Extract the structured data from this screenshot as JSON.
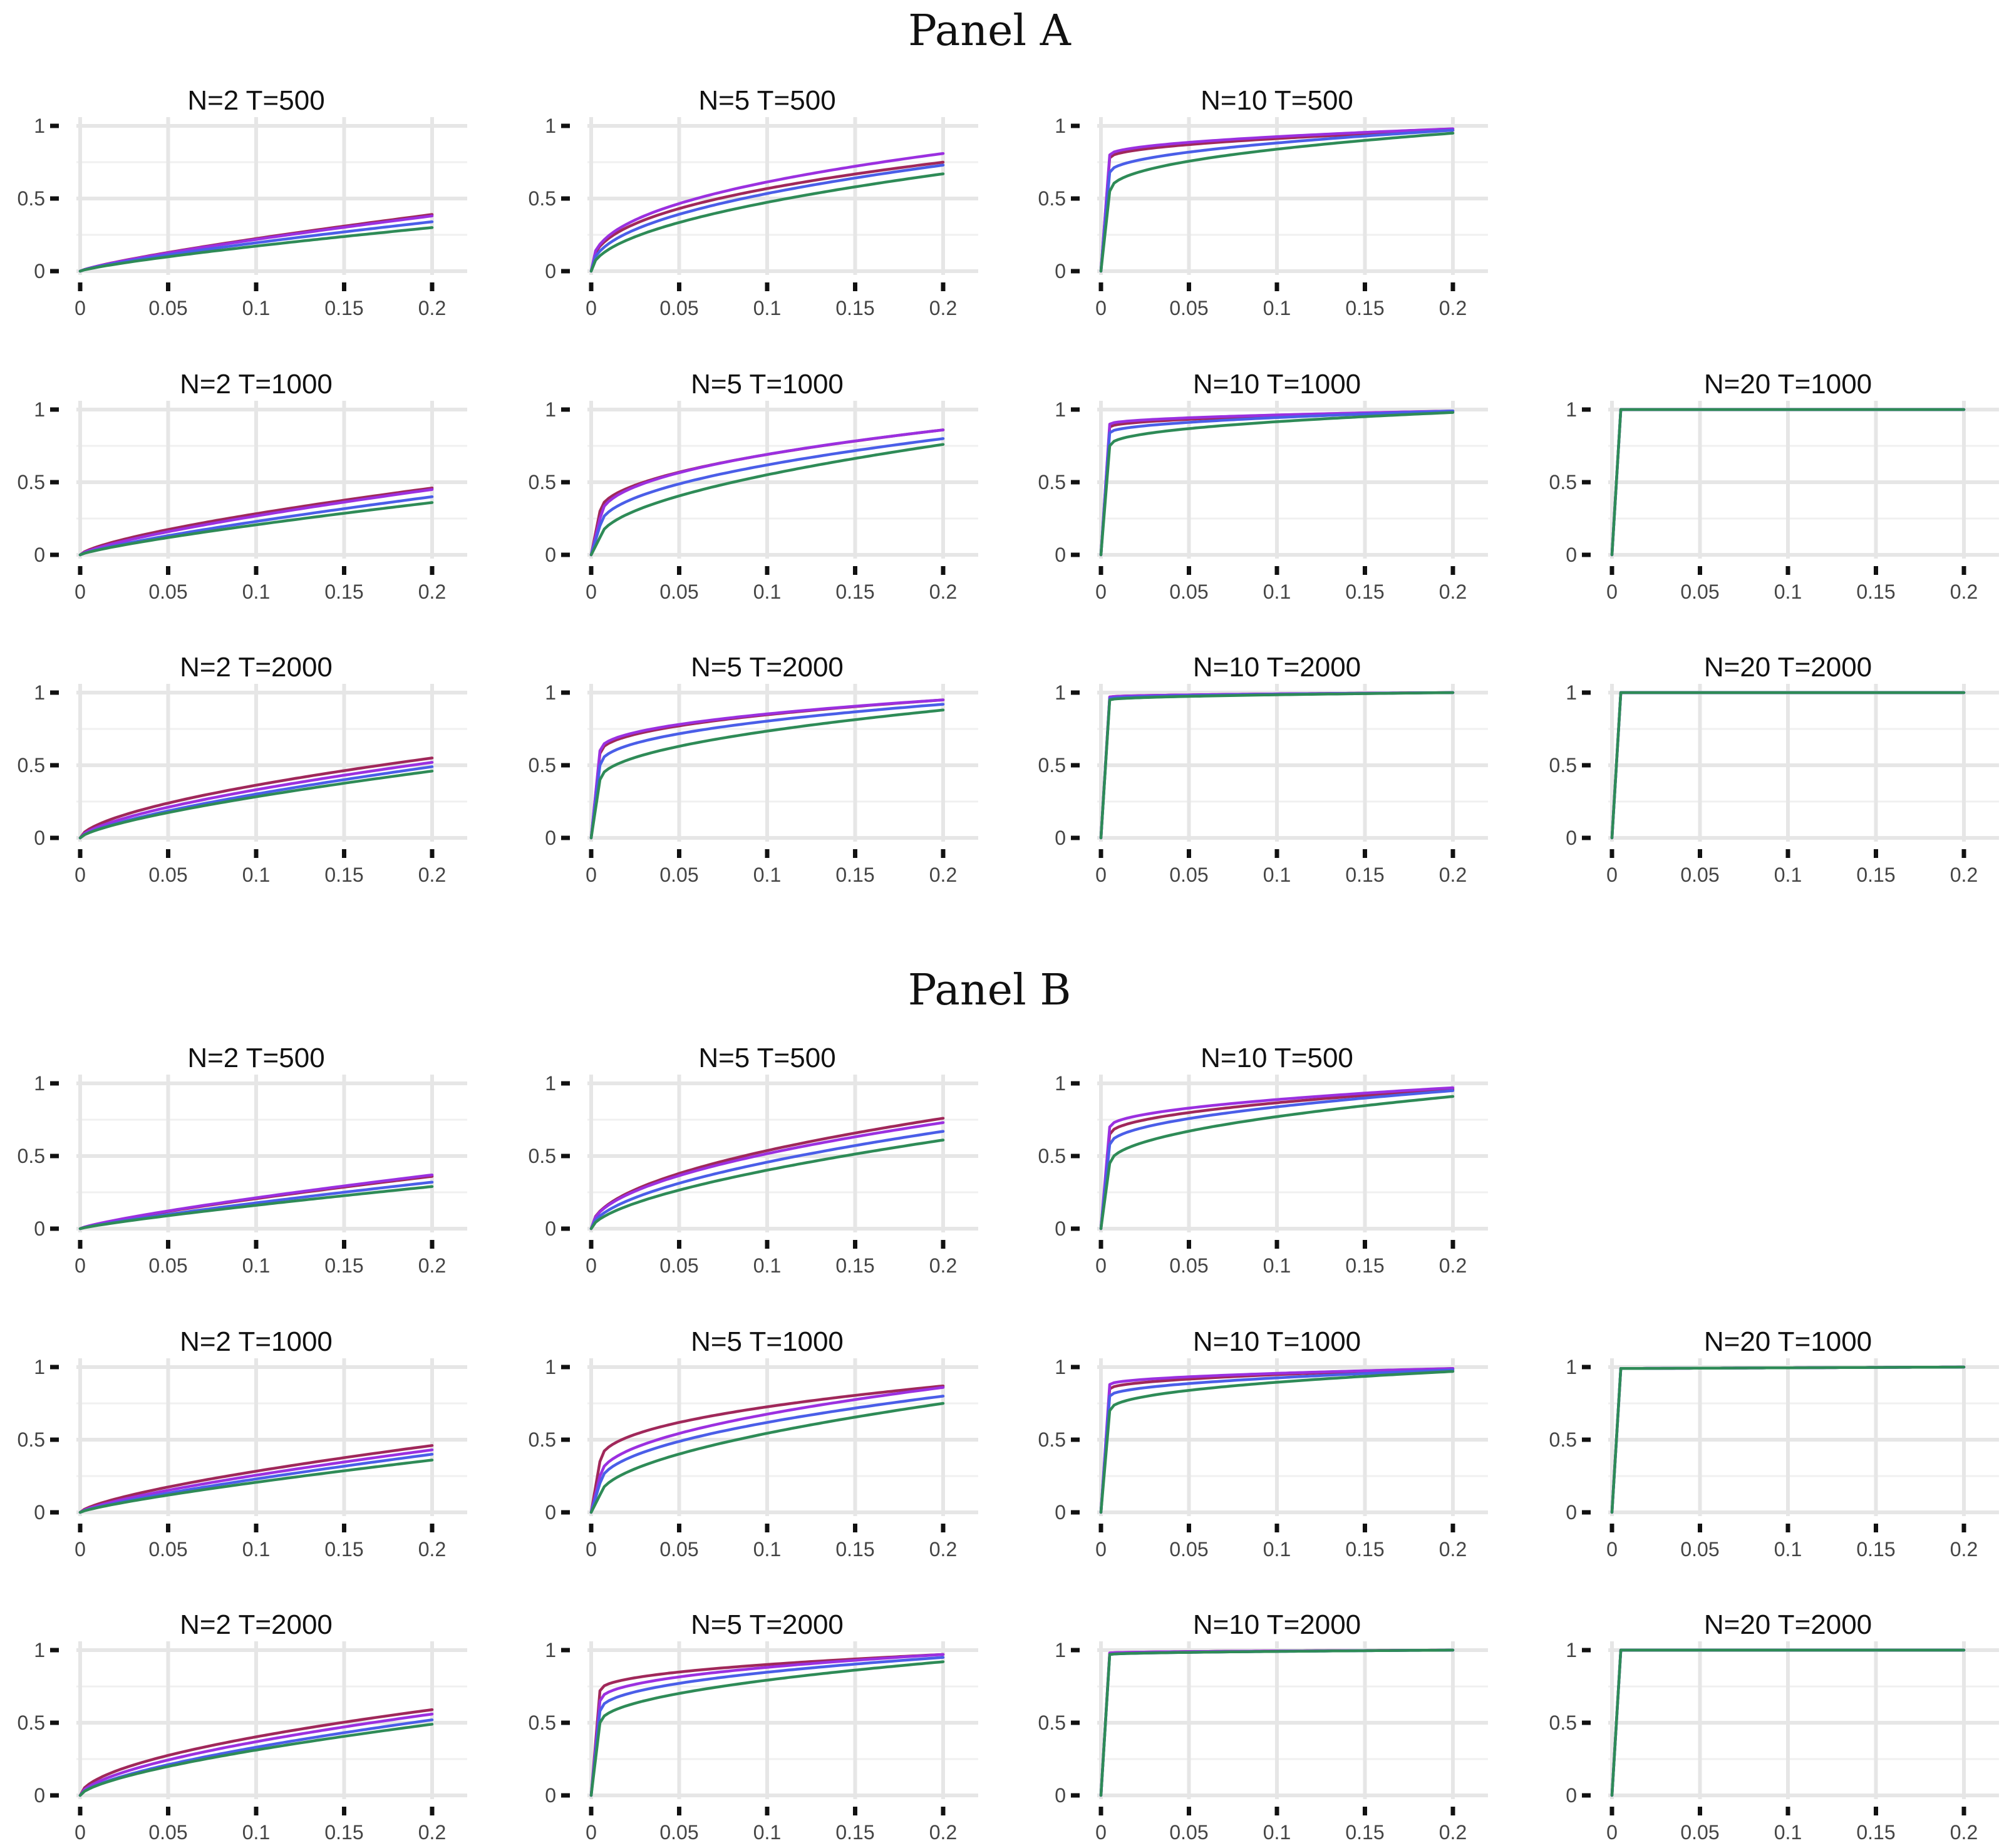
{
  "colors": {
    "crimson": "#a0285a",
    "purple": "#9b30e0",
    "blue": "#4a5ee8",
    "green": "#2e8b57"
  },
  "axis": {
    "x_ticks": [
      "0",
      "0.05",
      "0.1",
      "0.15",
      "0.2"
    ],
    "y_ticks": [
      "0",
      "0.5",
      "1"
    ]
  },
  "chart_data": {
    "type": "line",
    "xlim": [
      0,
      0.2
    ],
    "ylim": [
      0,
      1
    ],
    "panels": [
      {
        "title": "Panel A",
        "subplots": [
          {
            "N": 2,
            "T": 500,
            "title": "N=2   T=500",
            "col": 0,
            "row": 0,
            "series": [
              {
                "color": "crimson",
                "end": 0.39,
                "shape": 0.8
              },
              {
                "color": "purple",
                "end": 0.38,
                "shape": 0.8
              },
              {
                "color": "blue",
                "end": 0.34,
                "shape": 0.8
              },
              {
                "color": "green",
                "end": 0.3,
                "shape": 0.8
              }
            ]
          },
          {
            "N": 5,
            "T": 500,
            "title": "N=5   T=500",
            "col": 1,
            "row": 0,
            "series": [
              {
                "color": "crimson",
                "end": 0.75,
                "shape": 0.4
              },
              {
                "color": "purple",
                "end": 0.81,
                "shape": 0.4
              },
              {
                "color": "blue",
                "end": 0.73,
                "shape": 0.45
              },
              {
                "color": "green",
                "end": 0.67,
                "shape": 0.5
              }
            ]
          },
          {
            "N": 10,
            "T": 500,
            "title": "N=10   T=500",
            "col": 2,
            "row": 0,
            "series": [
              {
                "color": "crimson",
                "jump": 0.78,
                "end": 0.97,
                "shape": 0.5
              },
              {
                "color": "purple",
                "jump": 0.8,
                "end": 0.98,
                "shape": 0.5
              },
              {
                "color": "blue",
                "jump": 0.68,
                "end": 0.97,
                "shape": 0.5
              },
              {
                "color": "green",
                "jump": 0.55,
                "end": 0.95,
                "shape": 0.45
              }
            ]
          },
          {
            "N": 20,
            "T": 1000,
            "title": "N=20   T=1000",
            "col": 3,
            "row": 1,
            "series": [
              {
                "color": "crimson",
                "jump": 1.0,
                "end": 1.0,
                "shape": 1
              },
              {
                "color": "purple",
                "jump": 1.0,
                "end": 1.0,
                "shape": 1
              },
              {
                "color": "blue",
                "jump": 1.0,
                "end": 1.0,
                "shape": 1
              },
              {
                "color": "green",
                "jump": 1.0,
                "end": 1.0,
                "shape": 1
              }
            ]
          },
          {
            "N": 2,
            "T": 1000,
            "title": "N=2   T=1000",
            "col": 0,
            "row": 1,
            "series": [
              {
                "color": "crimson",
                "end": 0.46,
                "shape": 0.7
              },
              {
                "color": "purple",
                "end": 0.45,
                "shape": 0.75
              },
              {
                "color": "blue",
                "end": 0.4,
                "shape": 0.8
              },
              {
                "color": "green",
                "end": 0.36,
                "shape": 0.8
              }
            ]
          },
          {
            "N": 5,
            "T": 1000,
            "title": "N=5   T=1000",
            "col": 1,
            "row": 1,
            "series": [
              {
                "color": "crimson",
                "jump": 0.3,
                "end": 0.86,
                "shape": 0.5
              },
              {
                "color": "purple",
                "jump": 0.25,
                "end": 0.86,
                "shape": 0.45
              },
              {
                "color": "blue",
                "jump": 0.2,
                "end": 0.8,
                "shape": 0.5
              },
              {
                "color": "green",
                "jump": 0.12,
                "end": 0.76,
                "shape": 0.55
              }
            ]
          },
          {
            "N": 10,
            "T": 1000,
            "title": "N=10   T=1000",
            "col": 2,
            "row": 1,
            "series": [
              {
                "color": "crimson",
                "jump": 0.88,
                "end": 0.99,
                "shape": 0.5
              },
              {
                "color": "purple",
                "jump": 0.9,
                "end": 0.99,
                "shape": 0.5
              },
              {
                "color": "blue",
                "jump": 0.84,
                "end": 0.99,
                "shape": 0.5
              },
              {
                "color": "green",
                "jump": 0.75,
                "end": 0.98,
                "shape": 0.45
              }
            ]
          },
          {
            "N": 2,
            "T": 2000,
            "title": "N=2   T=2000",
            "col": 0,
            "row": 2,
            "series": [
              {
                "color": "crimson",
                "end": 0.55,
                "shape": 0.6
              },
              {
                "color": "purple",
                "end": 0.52,
                "shape": 0.65
              },
              {
                "color": "blue",
                "end": 0.49,
                "shape": 0.7
              },
              {
                "color": "green",
                "end": 0.46,
                "shape": 0.7
              }
            ]
          },
          {
            "N": 5,
            "T": 2000,
            "title": "N=5   T=2000",
            "col": 1,
            "row": 2,
            "series": [
              {
                "color": "crimson",
                "jump": 0.58,
                "end": 0.95,
                "shape": 0.45
              },
              {
                "color": "purple",
                "jump": 0.6,
                "end": 0.95,
                "shape": 0.45
              },
              {
                "color": "blue",
                "jump": 0.5,
                "end": 0.92,
                "shape": 0.45
              },
              {
                "color": "green",
                "jump": 0.4,
                "end": 0.88,
                "shape": 0.5
              }
            ]
          },
          {
            "N": 10,
            "T": 2000,
            "title": "N=10   T=2000",
            "col": 2,
            "row": 2,
            "series": [
              {
                "color": "crimson",
                "jump": 0.97,
                "end": 1.0,
                "shape": 0.5
              },
              {
                "color": "purple",
                "jump": 0.97,
                "end": 1.0,
                "shape": 0.5
              },
              {
                "color": "blue",
                "jump": 0.96,
                "end": 1.0,
                "shape": 0.5
              },
              {
                "color": "green",
                "jump": 0.95,
                "end": 1.0,
                "shape": 0.5
              }
            ]
          },
          {
            "N": 20,
            "T": 2000,
            "title": "N=20   T=2000",
            "col": 3,
            "row": 2,
            "series": [
              {
                "color": "crimson",
                "jump": 1.0,
                "end": 1.0,
                "shape": 1
              },
              {
                "color": "purple",
                "jump": 1.0,
                "end": 1.0,
                "shape": 1
              },
              {
                "color": "blue",
                "jump": 1.0,
                "end": 1.0,
                "shape": 1
              },
              {
                "color": "green",
                "jump": 1.0,
                "end": 1.0,
                "shape": 1
              }
            ]
          }
        ]
      },
      {
        "title": "Panel B",
        "subplots": [
          {
            "N": 2,
            "T": 500,
            "title": "N=2   T=500",
            "col": 0,
            "row": 0,
            "series": [
              {
                "color": "crimson",
                "end": 0.36,
                "shape": 0.8
              },
              {
                "color": "purple",
                "end": 0.37,
                "shape": 0.8
              },
              {
                "color": "blue",
                "end": 0.32,
                "shape": 0.85
              },
              {
                "color": "green",
                "end": 0.29,
                "shape": 0.85
              }
            ]
          },
          {
            "N": 5,
            "T": 500,
            "title": "N=5   T=500",
            "col": 1,
            "row": 0,
            "series": [
              {
                "color": "crimson",
                "end": 0.76,
                "shape": 0.5
              },
              {
                "color": "purple",
                "end": 0.73,
                "shape": 0.5
              },
              {
                "color": "blue",
                "end": 0.67,
                "shape": 0.55
              },
              {
                "color": "green",
                "end": 0.61,
                "shape": 0.6
              }
            ]
          },
          {
            "N": 10,
            "T": 500,
            "title": "N=10   T=500",
            "col": 2,
            "row": 0,
            "series": [
              {
                "color": "crimson",
                "jump": 0.65,
                "end": 0.96,
                "shape": 0.5
              },
              {
                "color": "purple",
                "jump": 0.7,
                "end": 0.97,
                "shape": 0.5
              },
              {
                "color": "blue",
                "jump": 0.58,
                "end": 0.95,
                "shape": 0.5
              },
              {
                "color": "green",
                "jump": 0.45,
                "end": 0.91,
                "shape": 0.5
              }
            ]
          },
          {
            "N": 20,
            "T": 1000,
            "title": "N=20   T=1000",
            "col": 3,
            "row": 1,
            "series": [
              {
                "color": "crimson",
                "jump": 0.99,
                "end": 1.0,
                "shape": 1
              },
              {
                "color": "purple",
                "jump": 0.99,
                "end": 1.0,
                "shape": 1
              },
              {
                "color": "blue",
                "jump": 0.99,
                "end": 1.0,
                "shape": 1
              },
              {
                "color": "green",
                "jump": 0.99,
                "end": 1.0,
                "shape": 1
              }
            ]
          },
          {
            "N": 2,
            "T": 1000,
            "title": "N=2   T=1000",
            "col": 0,
            "row": 1,
            "series": [
              {
                "color": "crimson",
                "end": 0.46,
                "shape": 0.7
              },
              {
                "color": "purple",
                "end": 0.43,
                "shape": 0.75
              },
              {
                "color": "blue",
                "end": 0.4,
                "shape": 0.8
              },
              {
                "color": "green",
                "end": 0.36,
                "shape": 0.8
              }
            ]
          },
          {
            "N": 5,
            "T": 1000,
            "title": "N=5   T=1000",
            "col": 1,
            "row": 1,
            "series": [
              {
                "color": "crimson",
                "jump": 0.35,
                "end": 0.87,
                "shape": 0.45
              },
              {
                "color": "purple",
                "jump": 0.25,
                "end": 0.86,
                "shape": 0.5
              },
              {
                "color": "blue",
                "jump": 0.2,
                "end": 0.8,
                "shape": 0.5
              },
              {
                "color": "green",
                "jump": 0.12,
                "end": 0.75,
                "shape": 0.55
              }
            ]
          },
          {
            "N": 10,
            "T": 1000,
            "title": "N=10   T=1000",
            "col": 2,
            "row": 1,
            "series": [
              {
                "color": "crimson",
                "jump": 0.85,
                "end": 0.99,
                "shape": 0.5
              },
              {
                "color": "purple",
                "jump": 0.88,
                "end": 0.99,
                "shape": 0.5
              },
              {
                "color": "blue",
                "jump": 0.8,
                "end": 0.98,
                "shape": 0.5
              },
              {
                "color": "green",
                "jump": 0.7,
                "end": 0.97,
                "shape": 0.45
              }
            ]
          },
          {
            "N": 2,
            "T": 2000,
            "title": "N=2   T=2000",
            "col": 0,
            "row": 2,
            "series": [
              {
                "color": "crimson",
                "end": 0.59,
                "shape": 0.55
              },
              {
                "color": "purple",
                "end": 0.56,
                "shape": 0.6
              },
              {
                "color": "blue",
                "end": 0.52,
                "shape": 0.65
              },
              {
                "color": "green",
                "end": 0.49,
                "shape": 0.65
              }
            ]
          },
          {
            "N": 5,
            "T": 2000,
            "title": "N=5   T=2000",
            "col": 1,
            "row": 2,
            "series": [
              {
                "color": "crimson",
                "jump": 0.72,
                "end": 0.97,
                "shape": 0.45
              },
              {
                "color": "purple",
                "jump": 0.65,
                "end": 0.97,
                "shape": 0.45
              },
              {
                "color": "blue",
                "jump": 0.58,
                "end": 0.95,
                "shape": 0.45
              },
              {
                "color": "green",
                "jump": 0.5,
                "end": 0.92,
                "shape": 0.5
              }
            ]
          },
          {
            "N": 10,
            "T": 2000,
            "title": "N=10   T=2000",
            "col": 2,
            "row": 2,
            "series": [
              {
                "color": "crimson",
                "jump": 0.98,
                "end": 1.0,
                "shape": 0.5
              },
              {
                "color": "purple",
                "jump": 0.98,
                "end": 1.0,
                "shape": 0.5
              },
              {
                "color": "blue",
                "jump": 0.97,
                "end": 1.0,
                "shape": 0.5
              },
              {
                "color": "green",
                "jump": 0.97,
                "end": 1.0,
                "shape": 0.5
              }
            ]
          },
          {
            "N": 20,
            "T": 2000,
            "title": "N=20   T=2000",
            "col": 3,
            "row": 2,
            "series": [
              {
                "color": "crimson",
                "jump": 1.0,
                "end": 1.0,
                "shape": 1
              },
              {
                "color": "purple",
                "jump": 1.0,
                "end": 1.0,
                "shape": 1
              },
              {
                "color": "blue",
                "jump": 1.0,
                "end": 1.0,
                "shape": 1
              },
              {
                "color": "green",
                "jump": 1.0,
                "end": 1.0,
                "shape": 1
              }
            ]
          }
        ]
      }
    ]
  }
}
